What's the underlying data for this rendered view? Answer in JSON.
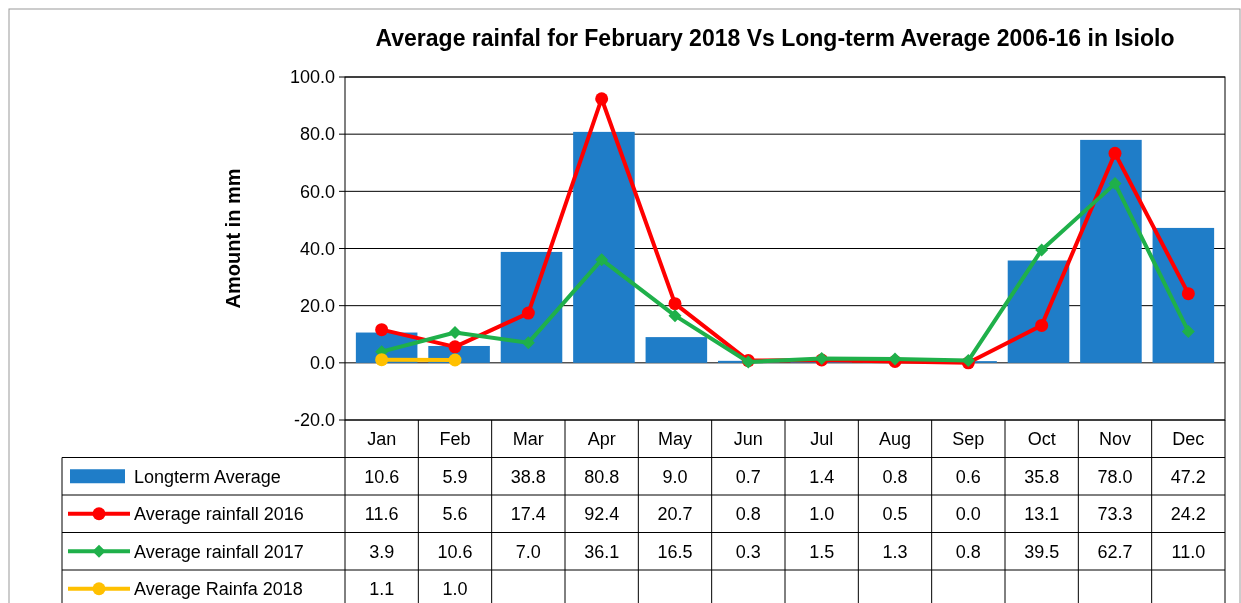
{
  "chart_data": {
    "type": "bar",
    "title": "Average rainfal for February 2018 Vs Long-term Average 2006-16 in Isiolo",
    "ylabel": "Amount  in mm",
    "categories": [
      "Jan",
      "Feb",
      "Mar",
      "Apr",
      "May",
      "Jun",
      "Jul",
      "Aug",
      "Sep",
      "Oct",
      "Nov",
      "Dec"
    ],
    "series": [
      {
        "name": "Longterm Average",
        "color": "#1f7dc8",
        "values": [
          10.6,
          5.9,
          38.8,
          80.8,
          9.0,
          0.7,
          1.4,
          0.8,
          0.6,
          35.8,
          78.0,
          47.2
        ],
        "value_labels": [
          "10.6",
          "5.9",
          "38.8",
          "80.8",
          "9.0",
          "0.7",
          "1.4",
          "0.8",
          "0.6",
          "35.8",
          "78.0",
          "47.2"
        ]
      },
      {
        "name": "Average rainfall 2016",
        "type": "line",
        "color": "#ff0000",
        "marker": "circle",
        "values": [
          11.6,
          5.6,
          17.4,
          92.4,
          20.7,
          0.8,
          1.0,
          0.5,
          0.0,
          13.1,
          73.3,
          24.2
        ],
        "value_labels": [
          "11.6",
          "5.6",
          "17.4",
          "92.4",
          "20.7",
          "0.8",
          "1.0",
          "0.5",
          "0.0",
          "13.1",
          "73.3",
          "24.2"
        ]
      },
      {
        "name": "Average rainfall 2017",
        "type": "line",
        "color": "#1fb04a",
        "marker": "diamond",
        "values": [
          3.9,
          10.6,
          7.0,
          36.1,
          16.5,
          0.3,
          1.5,
          1.3,
          0.8,
          39.5,
          62.7,
          11.0
        ],
        "value_labels": [
          "3.9",
          "10.6",
          "7.0",
          "36.1",
          "16.5",
          "0.3",
          "1.5",
          "1.3",
          "0.8",
          "39.5",
          "62.7",
          "11.0"
        ]
      },
      {
        "name": "Average Rainfa 2018",
        "type": "line",
        "color": "#ffc000",
        "marker": "circle",
        "values": [
          1.1,
          1.0,
          null,
          null,
          null,
          null,
          null,
          null,
          null,
          null,
          null,
          null
        ],
        "value_labels": [
          "1.1",
          "1.0",
          null,
          null,
          null,
          null,
          null,
          null,
          null,
          null,
          null,
          null
        ]
      }
    ],
    "ylim": [
      -20,
      100
    ],
    "yticks": [
      {
        "value": -20,
        "label": "-20.0"
      },
      {
        "value": 0,
        "label": "0.0"
      },
      {
        "value": 20,
        "label": "20.0"
      },
      {
        "value": 40,
        "label": "40.0"
      },
      {
        "value": 60,
        "label": "60.0"
      },
      {
        "value": 80,
        "label": "80.0"
      },
      {
        "value": 100,
        "label": "100.0"
      }
    ],
    "grid": "y",
    "legend": "bottom"
  }
}
